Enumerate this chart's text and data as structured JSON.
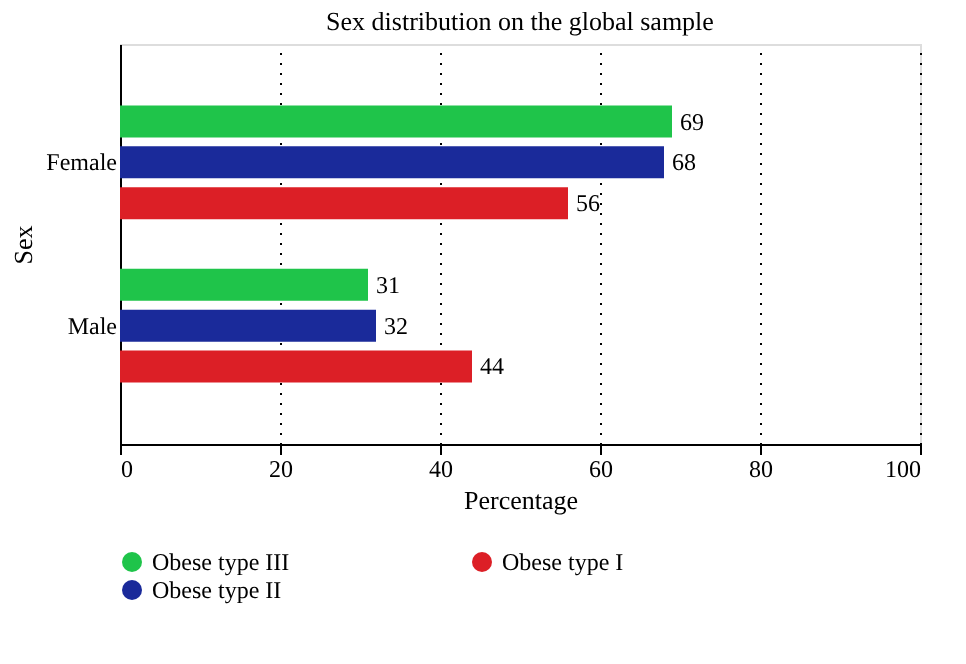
{
  "chart_data": {
    "type": "bar",
    "orientation": "horizontal",
    "title": "Sex distribution on the global sample",
    "xlabel": "Percentage",
    "ylabel": "Sex",
    "categories": [
      "Female",
      "Male"
    ],
    "series": [
      {
        "name": "Obese type III",
        "color": "#1fc44a",
        "values": [
          69,
          31
        ]
      },
      {
        "name": "Obese type II",
        "color": "#1a2a9a",
        "values": [
          68,
          32
        ]
      },
      {
        "name": "Obese type I",
        "color": "#dc1f26",
        "values": [
          56,
          44
        ]
      }
    ],
    "xlim": [
      0,
      100
    ],
    "xticks": [
      0,
      20,
      40,
      60,
      80,
      100
    ],
    "grid": "x",
    "legend": "bottom",
    "data_labels": true
  }
}
